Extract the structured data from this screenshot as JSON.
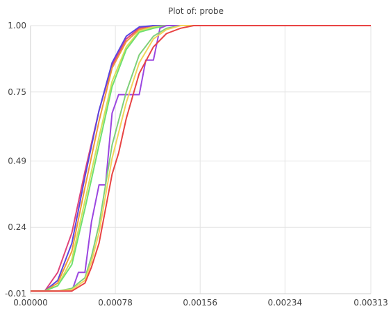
{
  "chart_data": {
    "type": "line",
    "title": "Plot of: probe",
    "xlabel": "",
    "ylabel": "",
    "xlim": [
      0.0,
      0.00313
    ],
    "ylim": [
      -0.01,
      1.0
    ],
    "x_ticks": [
      0.0,
      0.00078,
      0.00156,
      0.00234,
      0.00313
    ],
    "x_tick_labels": [
      "0.00000",
      "0.00078",
      "0.00156",
      "0.00234",
      "0.00313"
    ],
    "y_ticks": [
      -0.01,
      0.24,
      0.49,
      0.75,
      1.0
    ],
    "y_tick_labels": [
      "-0.01",
      "0.24",
      "0.49",
      "0.75",
      "1.00"
    ],
    "grid": true,
    "legend": "none",
    "series": [
      {
        "color": "#e0457b",
        "x": [
          0.0,
          0.00013,
          0.00025,
          0.00038,
          0.0005,
          0.00063,
          0.00075,
          0.00088,
          0.001,
          0.00113,
          0.00125,
          0.00313
        ],
        "y": [
          0.0,
          0.0,
          0.07,
          0.22,
          0.45,
          0.68,
          0.85,
          0.95,
          0.99,
          1.0,
          1.0,
          1.0
        ]
      },
      {
        "color": "#5b46e0",
        "x": [
          0.0,
          0.00013,
          0.00025,
          0.00038,
          0.0005,
          0.00063,
          0.00075,
          0.00088,
          0.001,
          0.00113,
          0.00125,
          0.00313
        ],
        "y": [
          0.0,
          0.0,
          0.04,
          0.18,
          0.43,
          0.68,
          0.86,
          0.96,
          0.995,
          1.0,
          1.0,
          1.0
        ]
      },
      {
        "color": "#f0973a",
        "x": [
          0.0,
          0.00013,
          0.00025,
          0.00038,
          0.0005,
          0.00063,
          0.00075,
          0.00088,
          0.001,
          0.00113,
          0.00125,
          0.00138,
          0.00313
        ],
        "y": [
          0.0,
          0.0,
          0.03,
          0.15,
          0.39,
          0.64,
          0.84,
          0.94,
          0.985,
          0.995,
          1.0,
          1.0,
          1.0
        ]
      },
      {
        "color": "#d6e05a",
        "x": [
          0.0,
          0.00013,
          0.00025,
          0.00038,
          0.0005,
          0.00063,
          0.00075,
          0.00088,
          0.001,
          0.00113,
          0.00125,
          0.00138,
          0.00313
        ],
        "y": [
          0.0,
          0.0,
          0.02,
          0.12,
          0.34,
          0.58,
          0.79,
          0.92,
          0.98,
          0.995,
          1.0,
          1.0,
          1.0
        ]
      },
      {
        "color": "#6fe070",
        "x": [
          0.0,
          0.00013,
          0.00025,
          0.00038,
          0.0005,
          0.00063,
          0.00075,
          0.00088,
          0.001,
          0.00113,
          0.00125,
          0.00138,
          0.00313
        ],
        "y": [
          0.0,
          0.0,
          0.02,
          0.1,
          0.31,
          0.55,
          0.77,
          0.91,
          0.975,
          0.99,
          1.0,
          1.0,
          1.0
        ]
      },
      {
        "color": "#9b46e0",
        "x": [
          0.0,
          0.00025,
          0.00038,
          0.00044,
          0.0005,
          0.00056,
          0.00063,
          0.00069,
          0.00075,
          0.00081,
          0.00094,
          0.001,
          0.00106,
          0.00113,
          0.00119,
          0.00125,
          0.00313
        ],
        "y": [
          0.0,
          0.0,
          0.0,
          0.07,
          0.07,
          0.26,
          0.4,
          0.4,
          0.67,
          0.74,
          0.74,
          0.74,
          0.87,
          0.87,
          0.99,
          1.0,
          1.0
        ]
      },
      {
        "color": "#7fd07a",
        "x": [
          0.0,
          0.00025,
          0.00038,
          0.0005,
          0.00056,
          0.00063,
          0.00069,
          0.00075,
          0.00088,
          0.001,
          0.00113,
          0.00125,
          0.00138,
          0.0015,
          0.00313
        ],
        "y": [
          0.0,
          0.0,
          0.01,
          0.05,
          0.13,
          0.25,
          0.4,
          0.55,
          0.75,
          0.89,
          0.96,
          0.99,
          1.0,
          1.0,
          1.0
        ]
      },
      {
        "color": "#f2d45a",
        "x": [
          0.0,
          0.00025,
          0.00038,
          0.0005,
          0.00056,
          0.00063,
          0.00069,
          0.00075,
          0.00088,
          0.001,
          0.00113,
          0.00125,
          0.00138,
          0.0015,
          0.00313
        ],
        "y": [
          0.0,
          0.0,
          0.005,
          0.04,
          0.11,
          0.22,
          0.36,
          0.5,
          0.71,
          0.86,
          0.95,
          0.985,
          1.0,
          1.0,
          1.0
        ]
      },
      {
        "color": "#e84444",
        "x": [
          0.0,
          0.00025,
          0.00038,
          0.0005,
          0.00056,
          0.00063,
          0.00069,
          0.00075,
          0.00081,
          0.00088,
          0.001,
          0.00113,
          0.00125,
          0.00138,
          0.0015,
          0.00156,
          0.00313
        ],
        "y": [
          0.0,
          0.0,
          0.0,
          0.03,
          0.09,
          0.18,
          0.31,
          0.44,
          0.52,
          0.65,
          0.82,
          0.92,
          0.97,
          0.99,
          1.0,
          1.0,
          1.0
        ]
      }
    ]
  }
}
